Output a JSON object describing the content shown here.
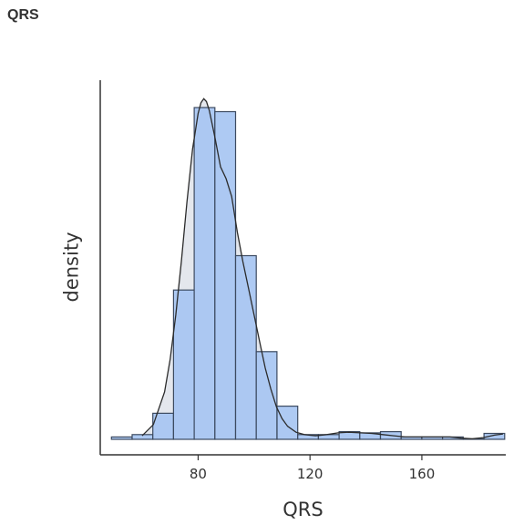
{
  "title": "QRS",
  "chart_data": {
    "type": "bar",
    "subtype": "histogram_with_density",
    "title": "",
    "xlabel": "QRS",
    "ylabel": "density",
    "xlim": [
      45,
      190
    ],
    "ylim": [
      0,
      0.06
    ],
    "xticks": [
      80,
      120,
      160
    ],
    "x_tick_labels": [
      "80",
      "120",
      "160"
    ],
    "y_ticks_shown": false,
    "bin_width": 7.4,
    "bins": [
      {
        "start": 49.0,
        "end": 56.4,
        "density": 0.0004
      },
      {
        "start": 56.4,
        "end": 63.8,
        "density": 0.0008
      },
      {
        "start": 63.8,
        "end": 71.2,
        "density": 0.0044
      },
      {
        "start": 71.2,
        "end": 78.6,
        "density": 0.0252
      },
      {
        "start": 78.6,
        "end": 86.0,
        "density": 0.056
      },
      {
        "start": 86.0,
        "end": 93.4,
        "density": 0.0553
      },
      {
        "start": 93.4,
        "end": 100.8,
        "density": 0.031
      },
      {
        "start": 100.8,
        "end": 108.2,
        "density": 0.0148
      },
      {
        "start": 108.2,
        "end": 115.6,
        "density": 0.0056
      },
      {
        "start": 115.6,
        "end": 123.0,
        "density": 0.0008
      },
      {
        "start": 123.0,
        "end": 130.4,
        "density": 0.0008
      },
      {
        "start": 130.4,
        "end": 137.8,
        "density": 0.0013
      },
      {
        "start": 137.8,
        "end": 145.2,
        "density": 0.0011
      },
      {
        "start": 145.2,
        "end": 152.6,
        "density": 0.0013
      },
      {
        "start": 152.6,
        "end": 160.0,
        "density": 0.0004
      },
      {
        "start": 160.0,
        "end": 167.4,
        "density": 0.0004
      },
      {
        "start": 167.4,
        "end": 174.8,
        "density": 0.0004
      },
      {
        "start": 174.8,
        "end": 182.2,
        "density": 0.0
      },
      {
        "start": 182.2,
        "end": 189.6,
        "density": 0.001
      }
    ],
    "density_curve": {
      "x": [
        60,
        64,
        68,
        70,
        72,
        74,
        76,
        78,
        80,
        81,
        82,
        83,
        84,
        86,
        88,
        90,
        92,
        94,
        96,
        98,
        100,
        102,
        104,
        106,
        108,
        110,
        112,
        115,
        118,
        122,
        126,
        130,
        134,
        138,
        142,
        146,
        150,
        154,
        158,
        162,
        166,
        170,
        174,
        178,
        182,
        186,
        189
      ],
      "y": [
        0.0006,
        0.0025,
        0.008,
        0.0135,
        0.021,
        0.03,
        0.04,
        0.049,
        0.055,
        0.0568,
        0.0575,
        0.057,
        0.0555,
        0.051,
        0.046,
        0.044,
        0.041,
        0.035,
        0.03,
        0.0255,
        0.021,
        0.0165,
        0.012,
        0.0085,
        0.0055,
        0.0035,
        0.0022,
        0.0012,
        0.0008,
        0.0006,
        0.0008,
        0.0011,
        0.0012,
        0.0011,
        0.001,
        0.0008,
        0.0006,
        0.0004,
        0.0004,
        0.0004,
        0.0004,
        0.0004,
        0.0002,
        0.0001,
        0.0003,
        0.0007,
        0.0009
      ]
    },
    "colors": {
      "bar_fill": "#a5c4f2",
      "bar_stroke": "#3c4a60",
      "density_fill": "#dfe3ea",
      "density_line": "#2b2b2b",
      "axis": "#333333"
    },
    "grid": false,
    "legend": "none"
  }
}
